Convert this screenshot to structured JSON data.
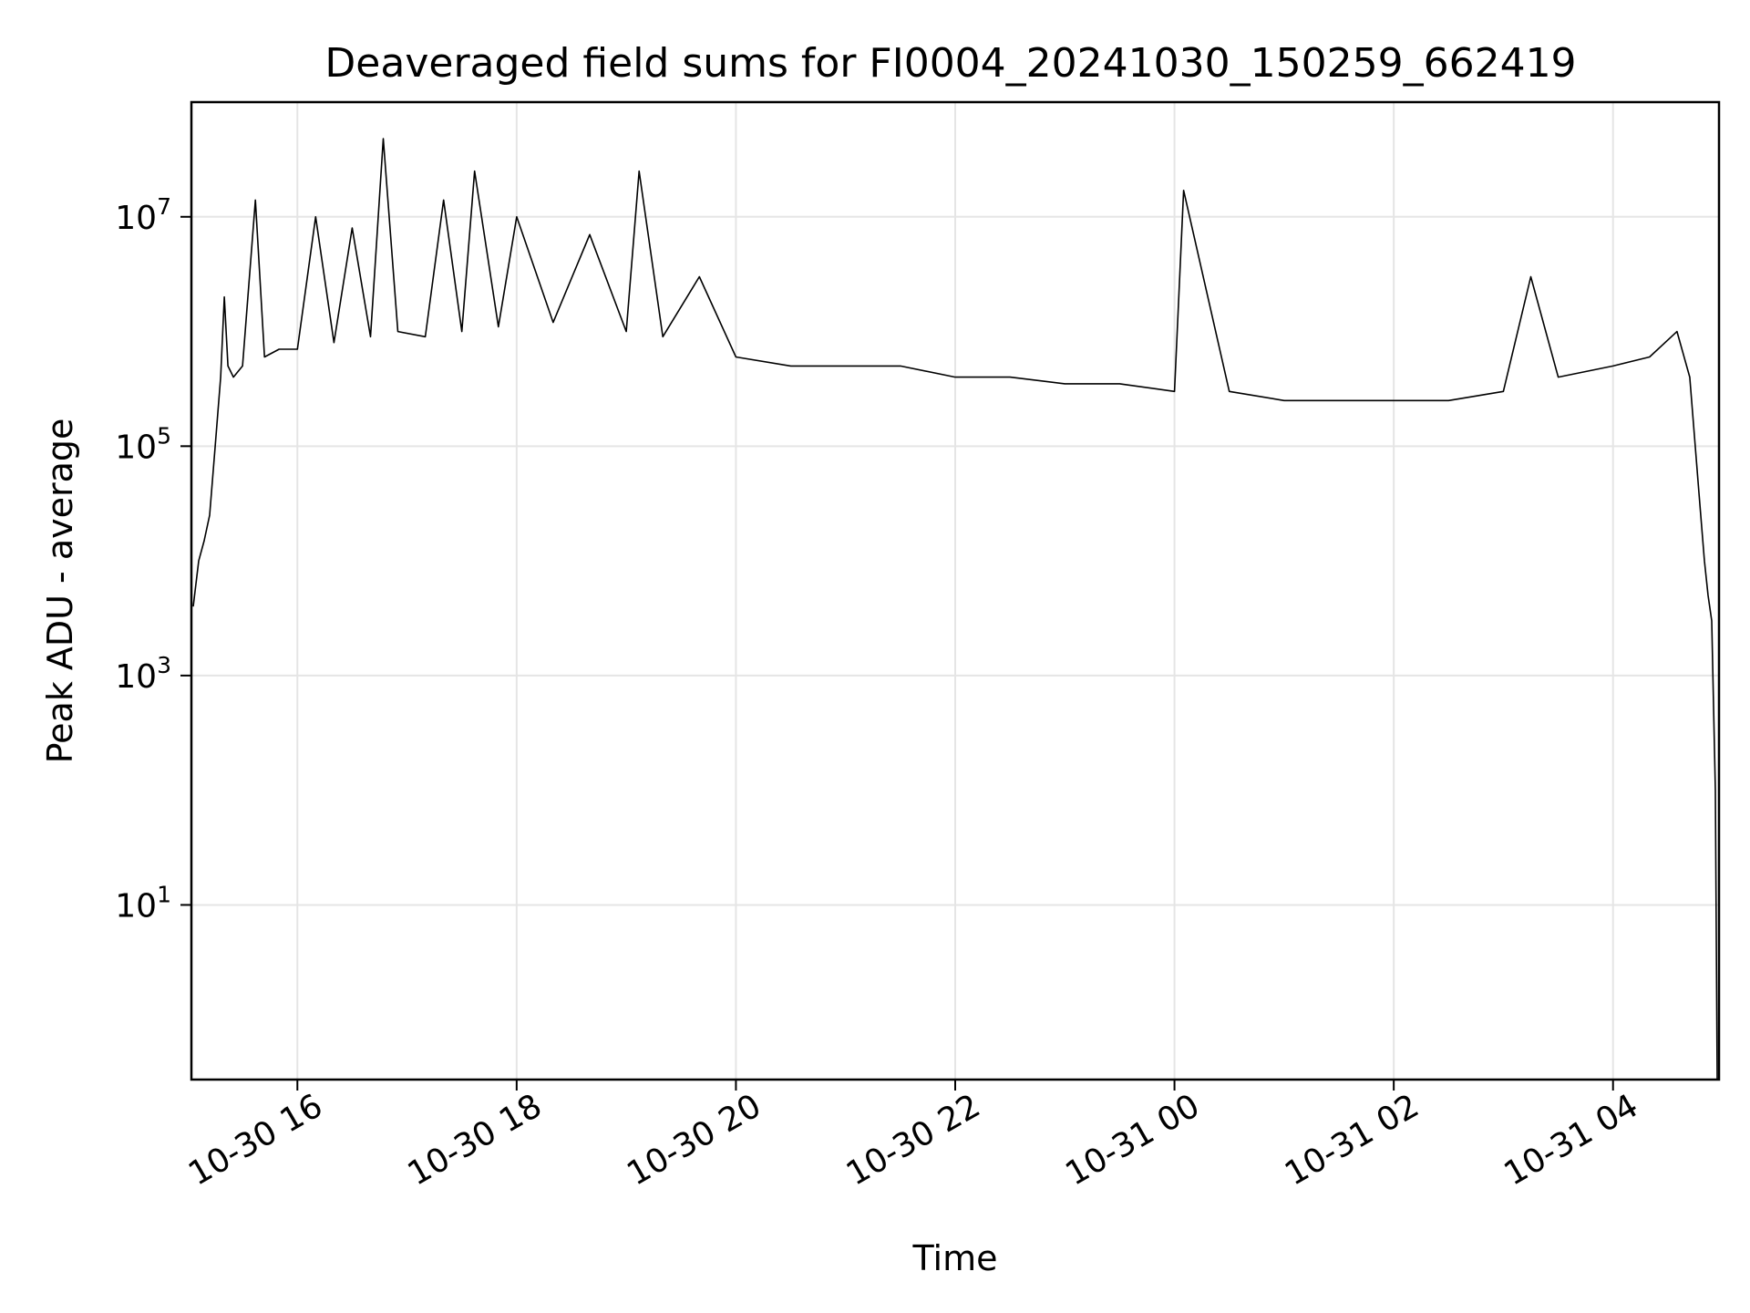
{
  "chart_data": {
    "type": "line",
    "title": "Deaveraged field sums for FI0004_20241030_150259_662419",
    "xlabel": "Time",
    "ylabel": "Peak ADU - average",
    "yscale": "log",
    "xlim": [
      "2024-10-30 15:02",
      "2024-10-31 04:58"
    ],
    "ylim": [
      0.3,
      100000000
    ],
    "grid": true,
    "x_ticks": [
      {
        "value": "2024-10-30 16:00",
        "label": "10-30 16"
      },
      {
        "value": "2024-10-30 18:00",
        "label": "10-30 18"
      },
      {
        "value": "2024-10-30 20:00",
        "label": "10-30 20"
      },
      {
        "value": "2024-10-30 22:00",
        "label": "10-30 22"
      },
      {
        "value": "2024-10-31 00:00",
        "label": "10-31 00"
      },
      {
        "value": "2024-10-31 02:00",
        "label": "10-31 02"
      },
      {
        "value": "2024-10-31 04:00",
        "label": "10-31 04"
      }
    ],
    "y_ticks": [
      {
        "value": 10,
        "base": "10",
        "exp": "1"
      },
      {
        "value": 1000,
        "base": "10",
        "exp": "3"
      },
      {
        "value": 100000,
        "base": "10",
        "exp": "5"
      },
      {
        "value": 10000000,
        "base": "10",
        "exp": "7"
      }
    ],
    "series": [
      {
        "color": "#000000",
        "x": [
          "2024-10-30 15:03",
          "2024-10-30 15:06",
          "2024-10-30 15:09",
          "2024-10-30 15:12",
          "2024-10-30 15:15",
          "2024-10-30 15:18",
          "2024-10-30 15:20",
          "2024-10-30 15:22",
          "2024-10-30 15:25",
          "2024-10-30 15:30",
          "2024-10-30 15:37",
          "2024-10-30 15:42",
          "2024-10-30 15:50",
          "2024-10-30 16:00",
          "2024-10-30 16:10",
          "2024-10-30 16:20",
          "2024-10-30 16:30",
          "2024-10-30 16:40",
          "2024-10-30 16:47",
          "2024-10-30 16:55",
          "2024-10-30 17:10",
          "2024-10-30 17:20",
          "2024-10-30 17:30",
          "2024-10-30 17:37",
          "2024-10-30 17:50",
          "2024-10-30 18:00",
          "2024-10-30 18:20",
          "2024-10-30 18:40",
          "2024-10-30 19:00",
          "2024-10-30 19:07",
          "2024-10-30 19:20",
          "2024-10-30 19:40",
          "2024-10-30 20:00",
          "2024-10-30 20:30",
          "2024-10-30 21:00",
          "2024-10-30 21:30",
          "2024-10-30 22:00",
          "2024-10-30 22:30",
          "2024-10-30 23:00",
          "2024-10-30 23:30",
          "2024-10-31 00:00",
          "2024-10-31 00:05",
          "2024-10-31 00:30",
          "2024-10-31 01:00",
          "2024-10-31 01:30",
          "2024-10-31 02:00",
          "2024-10-31 02:30",
          "2024-10-31 03:00",
          "2024-10-31 03:15",
          "2024-10-31 03:30",
          "2024-10-31 04:00",
          "2024-10-31 04:20",
          "2024-10-31 04:35",
          "2024-10-31 04:42",
          "2024-10-31 04:47",
          "2024-10-31 04:50",
          "2024-10-31 04:52",
          "2024-10-31 04:54",
          "2024-10-31 04:56",
          "2024-10-31 04:57"
        ],
        "y": [
          4000,
          10000,
          15000,
          25000,
          100000,
          400000,
          2000000,
          500000,
          400000,
          500000,
          14000000,
          600000,
          700000,
          700000,
          10000000,
          800000,
          8000000,
          900000,
          48000000,
          1000000,
          900000,
          14000000,
          1000000,
          25000000,
          1100000,
          10000000,
          1200000,
          7000000,
          1000000,
          25000000,
          900000,
          3000000,
          600000,
          500000,
          500000,
          500000,
          400000,
          400000,
          350000,
          350000,
          300000,
          17000000,
          300000,
          250000,
          250000,
          250000,
          250000,
          300000,
          3000000,
          400000,
          500000,
          600000,
          1000000,
          400000,
          40000,
          10000,
          5000,
          3000,
          100,
          0.3
        ]
      }
    ]
  }
}
